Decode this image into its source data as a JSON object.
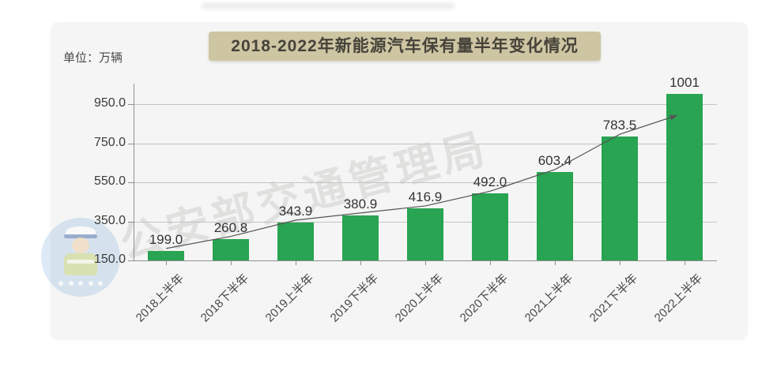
{
  "banner": {
    "label": "2018-2022年新能源汽车保有量半年变化情况",
    "bg_color": "#cec5a3",
    "text_color": "#46433a"
  },
  "unit_label": "单位：万辆",
  "watermark": {
    "text": "公安部交通管理局",
    "badge_icon": "traffic-police-mascot"
  },
  "chart_data": {
    "type": "bar",
    "title": "2018-2022年新能源汽车保有量半年变化情况",
    "unit": "万辆",
    "categories": [
      "2018上半年",
      "2018下半年",
      "2019上半年",
      "2019下半年",
      "2020上半年",
      "2020下半年",
      "2021上半年",
      "2021下半年",
      "2022上半年"
    ],
    "values": [
      199.0,
      260.8,
      343.9,
      380.9,
      416.9,
      492.0,
      603.4,
      783.5,
      1001
    ],
    "value_labels": [
      "199.0",
      "260.8",
      "343.9",
      "380.9",
      "416.9",
      "492.0",
      "603.4",
      "783.5",
      "1001"
    ],
    "y_ticks": [
      150.0,
      350.0,
      550.0,
      750.0,
      950.0
    ],
    "y_tick_labels": [
      "150.0",
      "350.0",
      "550.0",
      "750.0",
      "950.0"
    ],
    "ylim": [
      150,
      1110
    ],
    "grid": true,
    "legend": false,
    "trend_line": true,
    "bar_color": "#28a452",
    "grid_color": "#c2c4c2",
    "axis_color": "#8e908e",
    "trend_color": "#555555",
    "xlabel": "",
    "ylabel": "单位：万辆"
  }
}
